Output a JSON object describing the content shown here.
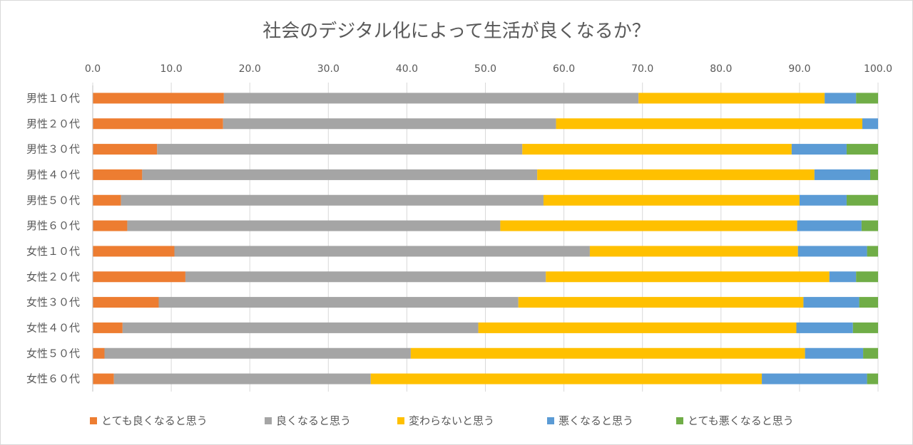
{
  "chart_data": {
    "type": "bar",
    "orientation": "horizontal",
    "stacked": true,
    "title": "社会のデジタル化によって生活が良くなるか？",
    "xlim": [
      0,
      100
    ],
    "xticks": [
      "0.0",
      "10.0",
      "20.0",
      "30.0",
      "40.0",
      "50.0",
      "60.0",
      "70.0",
      "80.0",
      "90.0",
      "100.0"
    ],
    "grid": true,
    "legend_position": "bottom",
    "categories": [
      "男性１０代",
      "男性２０代",
      "男性３０代",
      "男性４０代",
      "男性５０代",
      "男性６０代",
      "女性１０代",
      "女性２０代",
      "女性３０代",
      "女性４０代",
      "女性５０代",
      "女性６０代"
    ],
    "series": [
      {
        "name": "とても良くなると思う",
        "color": "#ED7D31",
        "values": [
          16.7,
          16.6,
          8.2,
          6.3,
          3.6,
          4.4,
          10.4,
          11.8,
          8.4,
          3.8,
          1.5,
          2.7
        ]
      },
      {
        "name": "良くなると思う",
        "color": "#A5A5A5",
        "values": [
          52.8,
          42.4,
          46.5,
          50.3,
          53.8,
          47.5,
          52.9,
          45.9,
          45.8,
          45.3,
          39.0,
          32.7
        ]
      },
      {
        "name": "変わらないと思う",
        "color": "#FFC000",
        "values": [
          23.7,
          39.0,
          34.3,
          35.3,
          32.6,
          37.8,
          26.5,
          36.1,
          36.3,
          40.5,
          50.2,
          49.8
        ]
      },
      {
        "name": "悪くなると思う",
        "color": "#5B9BD5",
        "values": [
          4.0,
          2.0,
          7.0,
          7.1,
          6.0,
          8.2,
          8.8,
          3.4,
          7.1,
          7.2,
          7.4,
          13.4
        ]
      },
      {
        "name": "とても悪くなると思う",
        "color": "#70AD47",
        "values": [
          2.8,
          0.0,
          4.0,
          1.0,
          4.0,
          2.1,
          1.4,
          2.8,
          2.4,
          3.2,
          1.9,
          1.4
        ]
      }
    ]
  }
}
